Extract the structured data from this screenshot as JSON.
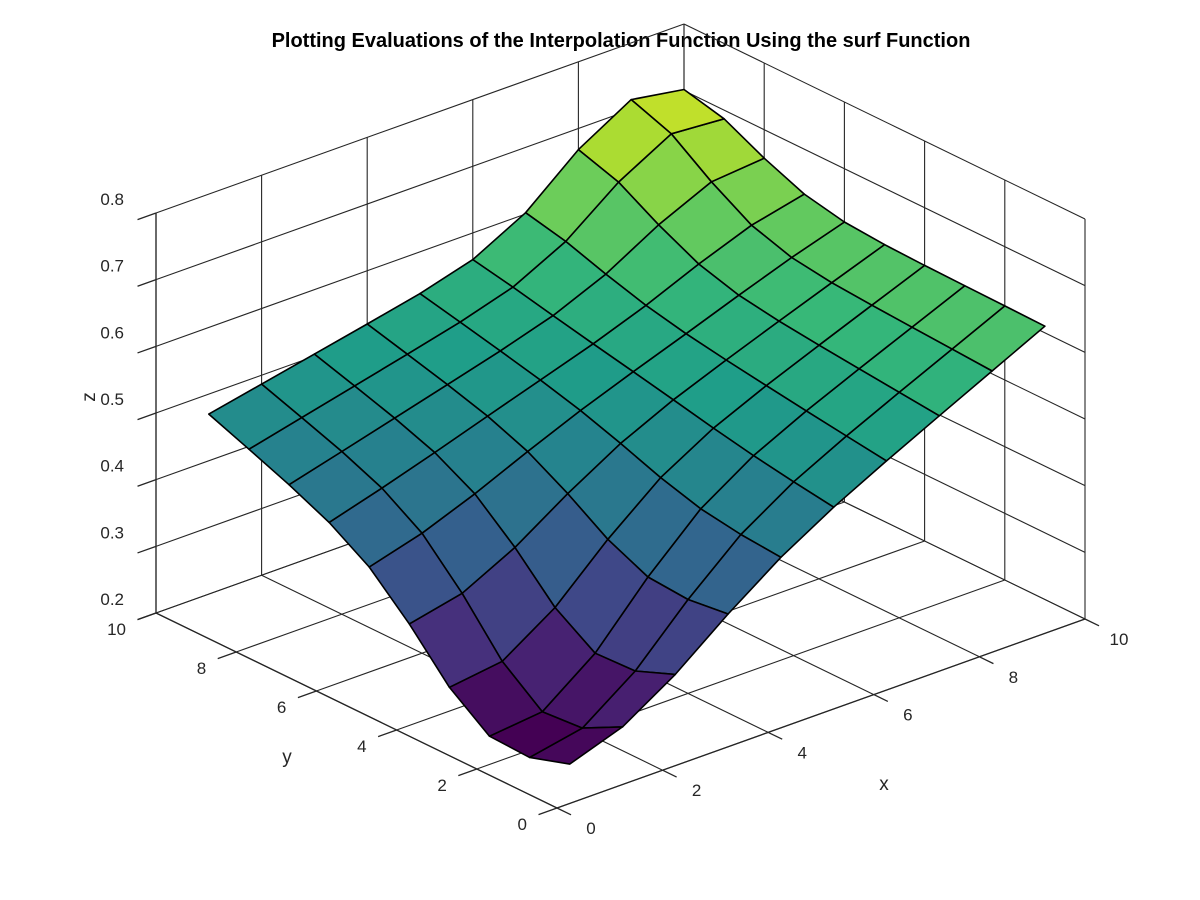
{
  "chart_data": {
    "type": "surface",
    "title": "Plotting Evaluations of the Interpolation Function Using the surf Function",
    "xlabel": "x",
    "ylabel": "y",
    "zlabel": "z",
    "xlim": [
      0,
      10
    ],
    "ylim": [
      0,
      10
    ],
    "zlim": [
      0.2,
      0.8
    ],
    "x_ticks": [
      "0",
      "2",
      "4",
      "6",
      "8",
      "10"
    ],
    "y_ticks": [
      "0",
      "2",
      "4",
      "6",
      "8",
      "10"
    ],
    "z_ticks": [
      "0.2",
      "0.3",
      "0.4",
      "0.5",
      "0.6",
      "0.7",
      "0.8"
    ],
    "grid": true,
    "colormap": "viridis",
    "surface_x_range": [
      1,
      10
    ],
    "surface_y_range": [
      1,
      10
    ],
    "z_corners": {
      "x1_y1": 0.26,
      "x10_y1": 0.61,
      "x1_y10": 0.47,
      "x10_y10": 0.62
    },
    "z_peak": {
      "x": 9,
      "y": 10,
      "z": 0.715
    },
    "z_min": {
      "x": 2,
      "y": 3,
      "z": 0.2
    }
  }
}
